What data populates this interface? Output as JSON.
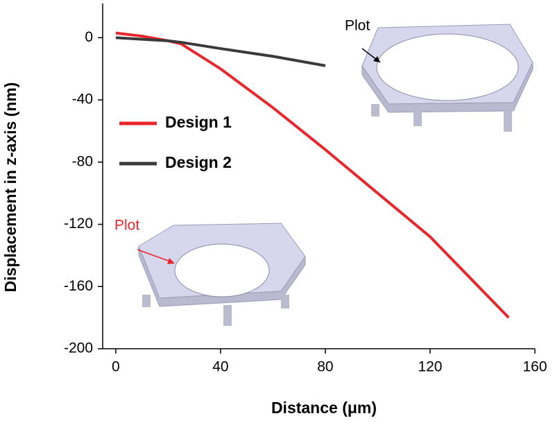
{
  "chart_data": {
    "type": "line",
    "xlabel": "Distance (μm)",
    "ylabel": "Displacement in z-axis  (nm)",
    "x": [
      0,
      10,
      20,
      25,
      40,
      60,
      80,
      100,
      120,
      150
    ],
    "series": [
      {
        "name": "Design 1",
        "color": "#e8262b",
        "values": [
          3,
          1,
          -2,
          -4,
          -20,
          -45,
          -72,
          -100,
          -128,
          -180
        ]
      },
      {
        "name": "Design 2",
        "color": "#3a3a3a",
        "values": [
          0,
          -1,
          -2,
          -3,
          -7,
          -12,
          -18,
          null,
          null,
          null
        ]
      }
    ],
    "xlim": [
      -5,
      160
    ],
    "xticks": [
      0,
      40,
      80,
      120,
      160
    ],
    "ylim": [
      -200,
      22
    ],
    "yticks": [
      0,
      -40,
      -80,
      -120,
      -160,
      -200
    ],
    "annotations": [
      {
        "text": "Plot",
        "color": "#000000"
      },
      {
        "text": "Plot",
        "color": "#e8262b"
      }
    ]
  }
}
